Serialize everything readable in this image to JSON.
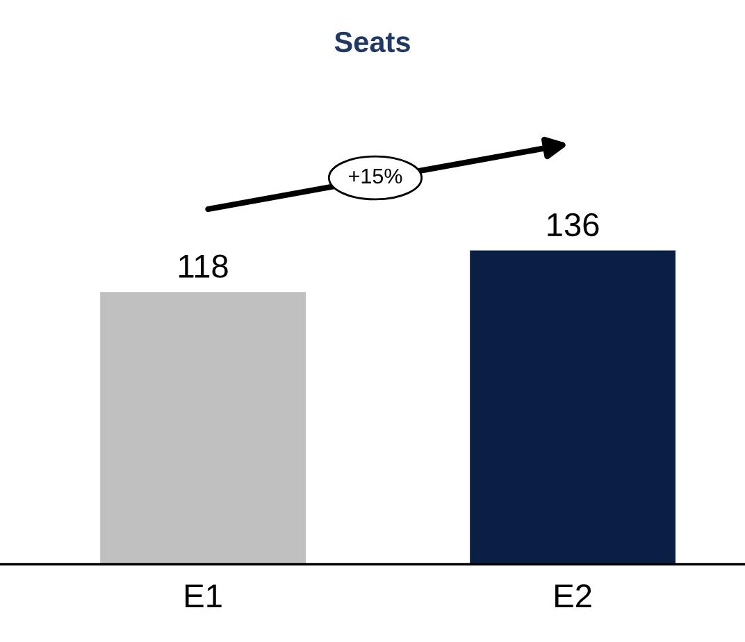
{
  "chart_data": {
    "type": "bar",
    "title": "Seats",
    "categories": [
      "E1",
      "E2"
    ],
    "values": [
      118,
      136
    ],
    "colors": [
      "#c0c0c0",
      "#0a1f44"
    ],
    "data_labels": true,
    "annotations": [
      "+15%"
    ]
  }
}
